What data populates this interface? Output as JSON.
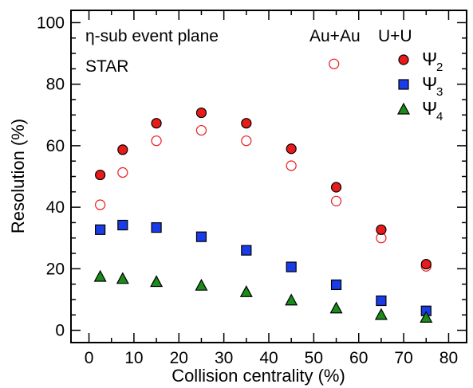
{
  "chart_data": {
    "type": "scatter",
    "title": "",
    "xlabel": "Collision centrality (%)",
    "ylabel": "Resolution (%)",
    "xlim": [
      -4,
      84
    ],
    "ylim": [
      -4,
      104
    ],
    "xticks": [
      0,
      10,
      20,
      30,
      40,
      50,
      60,
      70,
      80
    ],
    "yticks": [
      0,
      20,
      40,
      60,
      80,
      100
    ],
    "grid": false,
    "legend_position": "top-right",
    "annotations": [
      "η-sub event plane",
      "STAR",
      "Au+Au",
      "U+U"
    ],
    "systems": [
      "Au+Au",
      "U+U"
    ],
    "series": [
      {
        "name": "Ψ2",
        "legend_symbol": "Ψ",
        "legend_sub": "2",
        "marker": "circle",
        "color": "#e81a1a",
        "x": [
          2.5,
          7.5,
          15,
          25,
          35,
          45,
          55,
          65,
          75
        ],
        "y_filled": [
          50.5,
          58.7,
          67.3,
          70.7,
          67.3,
          59.0,
          46.5,
          32.7,
          21.5
        ],
        "y_open": [
          40.8,
          51.3,
          61.6,
          65.0,
          61.6,
          53.5,
          42.0,
          30.0,
          20.8
        ],
        "y_open_extra": {
          "x": 54.5,
          "y": 86.6
        }
      },
      {
        "name": "Ψ3",
        "legend_symbol": "Ψ",
        "legend_sub": "3",
        "marker": "square",
        "color": "#1a3be8",
        "x": [
          2.5,
          7.5,
          15,
          25,
          35,
          45,
          55,
          65,
          75
        ],
        "y": [
          32.7,
          34.2,
          33.4,
          30.4,
          26.0,
          20.6,
          14.8,
          9.6,
          6.3
        ]
      },
      {
        "name": "Ψ4",
        "legend_symbol": "Ψ",
        "legend_sub": "4",
        "marker": "triangle",
        "color": "#1a8c1a",
        "x": [
          2.5,
          7.5,
          15,
          25,
          35,
          45,
          55,
          65,
          75
        ],
        "y": [
          17.5,
          16.8,
          15.8,
          14.6,
          12.5,
          9.8,
          7.2,
          5.1,
          4.2
        ]
      }
    ]
  }
}
